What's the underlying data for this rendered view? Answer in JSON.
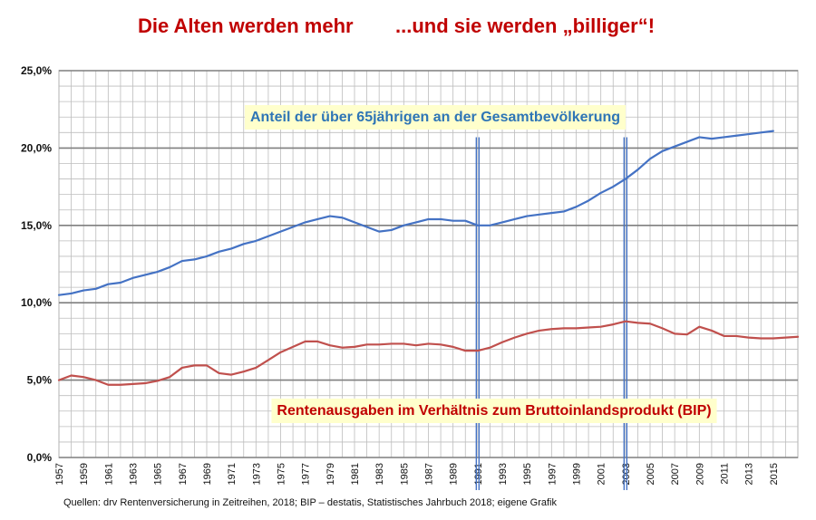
{
  "header": {
    "title_left": "Die Alten werden mehr",
    "title_right": "...und sie werden „billiger“!"
  },
  "footer": {
    "source": "Quellen: drv Rentenversicherung in Zeitreihen, 2018; BIP – destatis, Statistisches Jahrbuch 2018; eigene Grafik"
  },
  "colors": {
    "title": "#c00000",
    "series_old": "#4472c4",
    "series_pension": "#c0504d",
    "annotation_bg": "#ffffcc",
    "annotation_blue_text": "#2e75b6",
    "annotation_red_text": "#c00000",
    "grid": "#bdbdbd",
    "major_grid": "#7f7f7f",
    "marker_line": "#4472c4"
  },
  "chart_data": {
    "type": "line",
    "title": "",
    "xlabel": "",
    "ylabel": "",
    "x": [
      1957,
      1958,
      1959,
      1960,
      1961,
      1962,
      1963,
      1964,
      1965,
      1966,
      1967,
      1968,
      1969,
      1970,
      1971,
      1972,
      1973,
      1974,
      1975,
      1976,
      1977,
      1978,
      1979,
      1980,
      1981,
      1982,
      1983,
      1984,
      1985,
      1986,
      1987,
      1988,
      1989,
      1990,
      1991,
      1992,
      1993,
      1994,
      1995,
      1996,
      1997,
      1998,
      1999,
      2000,
      2001,
      2002,
      2003,
      2004,
      2005,
      2006,
      2007,
      2008,
      2009,
      2010,
      2011,
      2012,
      2013,
      2014,
      2015,
      2016,
      2017
    ],
    "x_tick_labels": [
      "1957",
      "1959",
      "1961",
      "1963",
      "1965",
      "1967",
      "1969",
      "1971",
      "1973",
      "1975",
      "1977",
      "1979",
      "1981",
      "1983",
      "1985",
      "1987",
      "1989",
      "1991",
      "1993",
      "1995",
      "1997",
      "1999",
      "2001",
      "2003",
      "2005",
      "2007",
      "2009",
      "2011",
      "2013",
      "2015"
    ],
    "ylim": [
      0,
      25
    ],
    "y_tick_labels": [
      "0,0%",
      "5,0%",
      "10,0%",
      "15,0%",
      "20,0%",
      "25,0%"
    ],
    "grid": true,
    "vertical_markers": [
      1991,
      2003
    ],
    "series": [
      {
        "name": "Anteil der über 65jährigen an der Gesamtbevölkerung",
        "color": "#4472c4",
        "values": [
          10.5,
          10.6,
          10.8,
          10.9,
          11.2,
          11.3,
          11.6,
          11.8,
          12.0,
          12.3,
          12.7,
          12.8,
          13.0,
          13.3,
          13.5,
          13.8,
          14.0,
          14.3,
          14.6,
          14.9,
          15.2,
          15.4,
          15.6,
          15.5,
          15.2,
          14.9,
          14.6,
          14.7,
          15.0,
          15.2,
          15.4,
          15.4,
          15.3,
          15.3,
          15.0,
          15.0,
          15.2,
          15.4,
          15.6,
          15.7,
          15.8,
          15.9,
          16.2,
          16.6,
          17.1,
          17.5,
          18.0,
          18.6,
          19.3,
          19.8,
          20.1,
          20.4,
          20.7,
          20.6,
          20.7,
          20.8,
          20.9,
          21.0,
          21.1,
          null,
          null
        ]
      },
      {
        "name": "Rentenausgaben im Verhältnis zum Bruttoinlandsprodukt (BIP)",
        "color": "#c0504d",
        "values": [
          5.0,
          5.3,
          5.2,
          5.0,
          4.7,
          4.7,
          4.75,
          4.8,
          4.95,
          5.2,
          5.8,
          5.95,
          5.95,
          5.45,
          5.35,
          5.55,
          5.8,
          6.3,
          6.8,
          7.15,
          7.5,
          7.5,
          7.25,
          7.1,
          7.15,
          7.3,
          7.3,
          7.35,
          7.35,
          7.25,
          7.35,
          7.3,
          7.15,
          6.9,
          6.9,
          7.1,
          7.45,
          7.75,
          8.0,
          8.2,
          8.3,
          8.35,
          8.35,
          8.4,
          8.45,
          8.6,
          8.8,
          8.7,
          8.65,
          8.35,
          8.0,
          7.95,
          8.45,
          8.2,
          7.85,
          7.85,
          7.75,
          7.7,
          7.7,
          7.75,
          7.8
        ]
      }
    ]
  }
}
